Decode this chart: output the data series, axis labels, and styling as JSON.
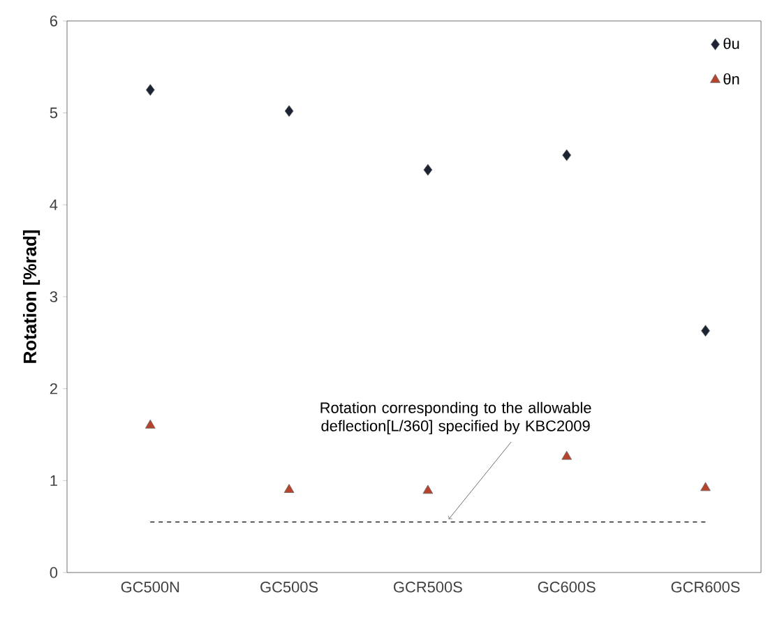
{
  "chart_data": {
    "type": "scatter",
    "ylabel": "Rotation  [%rad]",
    "categories": [
      "GC500N",
      "GC500S",
      "GCR500S",
      "GC600S",
      "GCR600S"
    ],
    "series": [
      {
        "name": "θu",
        "color": "#1c2333",
        "marker": "diamond",
        "values": [
          5.25,
          5.02,
          4.38,
          4.54,
          2.63
        ]
      },
      {
        "name": "θn",
        "color": "#b8432b",
        "marker": "triangle",
        "values": [
          1.6,
          0.9,
          0.89,
          1.26,
          0.92
        ]
      }
    ],
    "ylim": [
      0,
      6
    ],
    "yticks": [
      0,
      1,
      2,
      3,
      4,
      5,
      6
    ],
    "grid": false,
    "legend": "top right",
    "ref_lines": [
      {
        "axis": "y",
        "value": 0.55,
        "label": "Rotation corresponding to the allowable deflection[L/360] specified by KBC2009",
        "color": "#000000",
        "line_style": "dashed"
      }
    ]
  }
}
